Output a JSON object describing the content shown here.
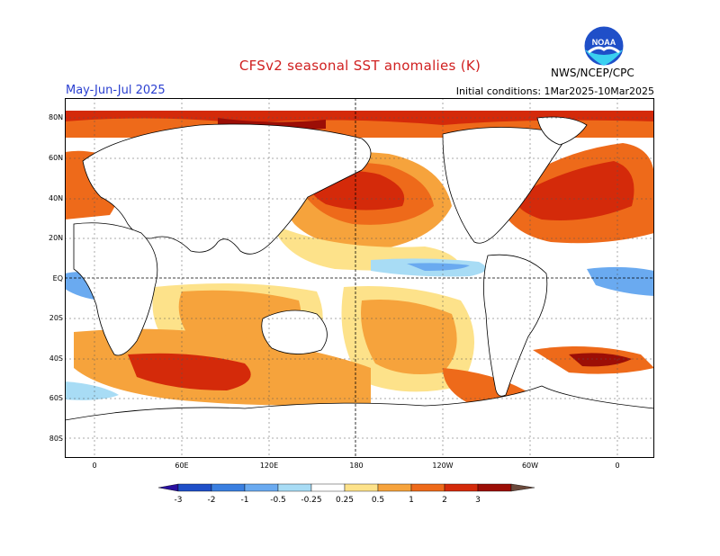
{
  "header": {
    "title": "CFSv2 seasonal SST anomalies (K)",
    "season": "May-Jun-Jul 2025",
    "initial_conditions": "Initial conditions: 1Mar2025-10Mar2025",
    "agency": "NWS/NCEP/CPC",
    "logo_text": "NOAA"
  },
  "map": {
    "lat_labels": [
      "80N",
      "60N",
      "40N",
      "20N",
      "EQ",
      "20S",
      "40S",
      "60S",
      "80S"
    ],
    "lon_labels": [
      "0",
      "60E",
      "120E",
      "180",
      "120W",
      "60W",
      "0"
    ]
  },
  "colorbar": {
    "labels": [
      "-3",
      "-2",
      "-1",
      "-0.5",
      "-0.25",
      "0.25",
      "0.5",
      "1",
      "2",
      "3"
    ],
    "colors": [
      "#2a10a0",
      "#1f4fc8",
      "#3a7fe0",
      "#6aaaf0",
      "#a8dcf5",
      "#ffffff",
      "#fde28a",
      "#f6a33c",
      "#ee6a1a",
      "#d42a0a",
      "#9c0e06",
      "#6b4a3c"
    ]
  },
  "colors": {
    "title": "#d02020",
    "season": "#2a3fd0",
    "warm_light": "#fde28a",
    "warm_mid": "#f6a33c",
    "warm": "#ee6a1a",
    "hot": "#d42a0a",
    "very_hot": "#9c0e06",
    "cool_light": "#a8dcf5",
    "cool": "#6aaaf0"
  }
}
